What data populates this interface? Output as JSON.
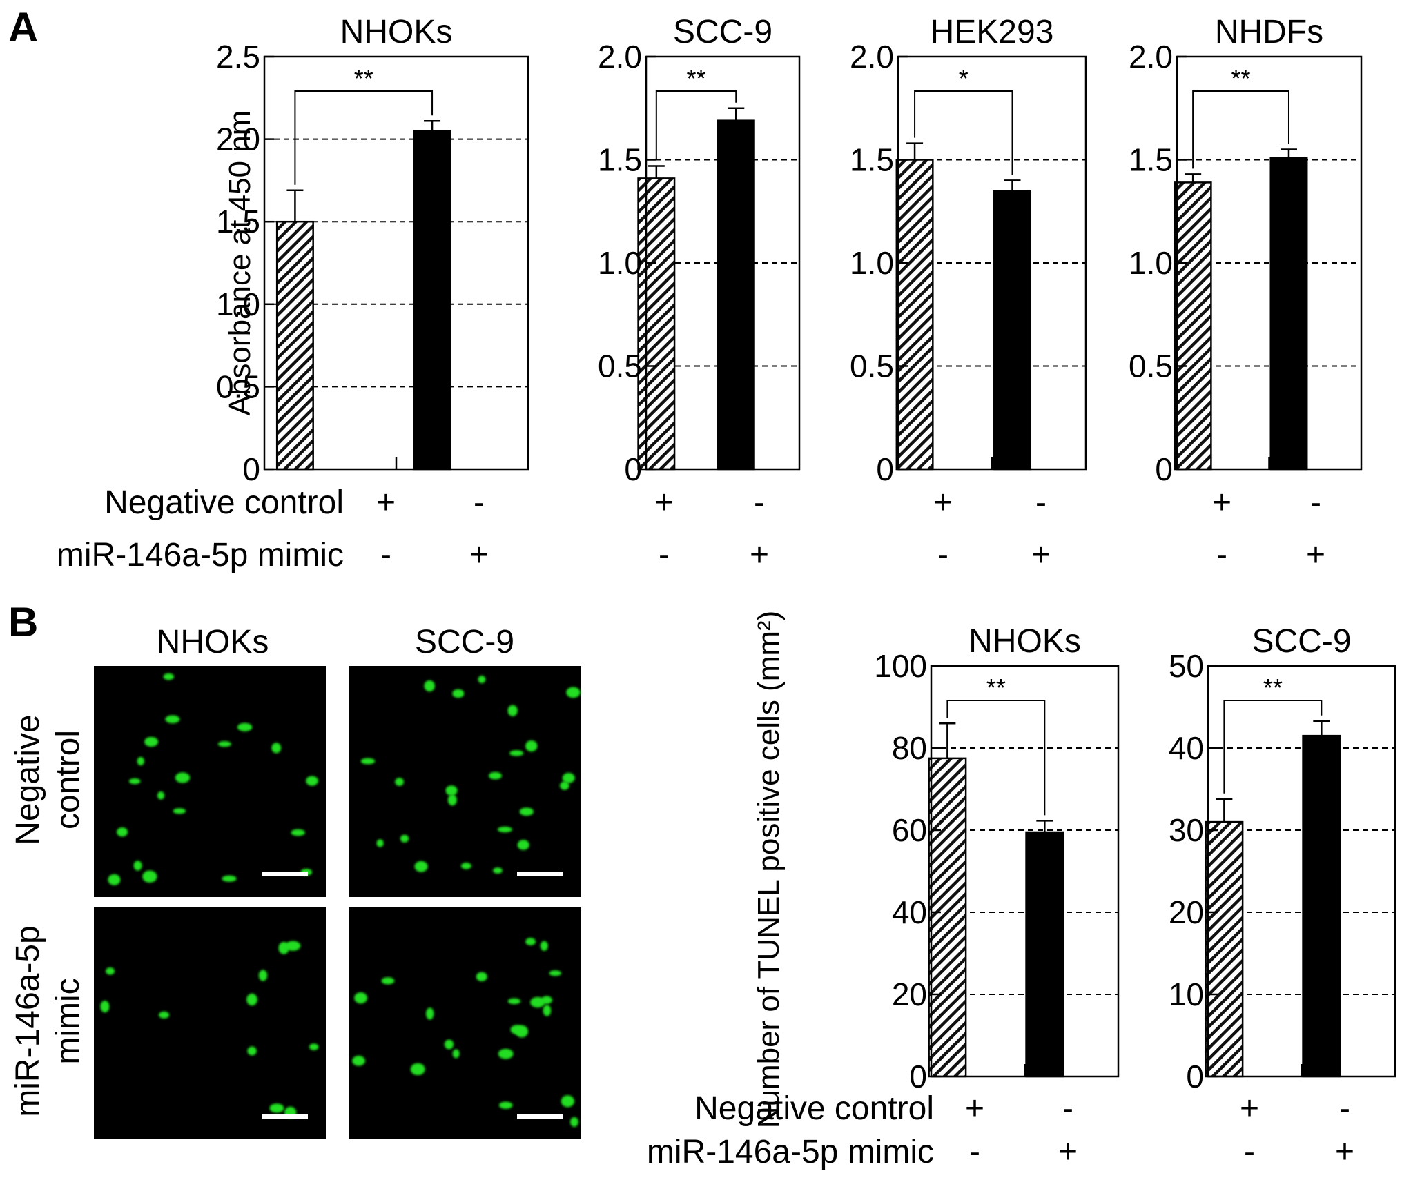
{
  "panel_labels": [
    "A",
    "B"
  ],
  "colors": {
    "control_fill": "hatched",
    "mimic_fill": "#000000",
    "fluorescence": "#22dd22",
    "micrograph_bg": "#000000"
  },
  "treatments": {
    "negative_control_label": "Negative control",
    "mimic_label": "miR-146a-5p mimic",
    "rows": [
      {
        "control": "+",
        "mimic": "-"
      },
      {
        "control": "-",
        "mimic": "+"
      }
    ]
  },
  "chart_data": [
    {
      "type": "bar",
      "panel": "A",
      "title": "NHOKs",
      "ylabel": "Absorbance at 450 nm",
      "ylim": [
        0,
        2.5
      ],
      "yticks": [
        "0",
        "0.5",
        "1.0",
        "1.5",
        "2.0",
        "2.5"
      ],
      "grid": "dashed",
      "categories": [
        "Negative control",
        "miR-146a-5p mimic"
      ],
      "values": [
        1.5,
        2.05
      ],
      "errors": [
        0.19,
        0.06
      ],
      "significance": "**"
    },
    {
      "type": "bar",
      "panel": "A",
      "title": "SCC-9",
      "ylabel": "",
      "ylim": [
        0,
        2.0
      ],
      "yticks": [
        "0",
        "0.5",
        "1.0",
        "1.5",
        "2.0"
      ],
      "grid": "dashed",
      "categories": [
        "Negative control",
        "miR-146a-5p mimic"
      ],
      "values": [
        1.41,
        1.69
      ],
      "errors": [
        0.06,
        0.06
      ],
      "significance": "**"
    },
    {
      "type": "bar",
      "panel": "A",
      "title": "HEK293",
      "ylabel": "",
      "ylim": [
        0,
        2.0
      ],
      "yticks": [
        "0",
        "0.5",
        "1.0",
        "1.5",
        "2.0"
      ],
      "grid": "dashed",
      "categories": [
        "Negative control",
        "miR-146a-5p mimic"
      ],
      "values": [
        1.5,
        1.35
      ],
      "errors": [
        0.08,
        0.05
      ],
      "significance": "*"
    },
    {
      "type": "bar",
      "panel": "A",
      "title": "NHDFs",
      "ylabel": "",
      "ylim": [
        0,
        2.0
      ],
      "yticks": [
        "0",
        "0.5",
        "1.0",
        "1.5",
        "2.0"
      ],
      "grid": "dashed",
      "categories": [
        "Negative control",
        "miR-146a-5p mimic"
      ],
      "values": [
        1.39,
        1.51
      ],
      "errors": [
        0.04,
        0.04
      ],
      "significance": "**"
    },
    {
      "type": "bar",
      "panel": "B",
      "title": "NHOKs",
      "ylabel": "Number of TUNEL positive cells (mm²)",
      "ylim": [
        0,
        100
      ],
      "yticks": [
        "0",
        "20",
        "40",
        "60",
        "80",
        "100"
      ],
      "grid": "dashed",
      "categories": [
        "Negative control",
        "miR-146a-5p mimic"
      ],
      "values": [
        77.5,
        59.5
      ],
      "errors": [
        8.5,
        2.8
      ],
      "significance": "**"
    },
    {
      "type": "bar",
      "panel": "B",
      "title": "SCC-9",
      "ylabel": "",
      "ylim": [
        0,
        50
      ],
      "yticks": [
        "0",
        "10",
        "20",
        "30",
        "40",
        "50"
      ],
      "grid": "dashed",
      "categories": [
        "Negative control",
        "miR-146a-5p mimic"
      ],
      "values": [
        31,
        41.5
      ],
      "errors": [
        2.8,
        1.8
      ],
      "significance": "**"
    }
  ],
  "micrographs": {
    "column_titles": [
      "NHOKs",
      "SCC-9"
    ],
    "row_labels": [
      {
        "line1": "Negative",
        "line2": "control"
      },
      {
        "line1": "miR-146a-5p",
        "line2": "mimic"
      }
    ]
  }
}
